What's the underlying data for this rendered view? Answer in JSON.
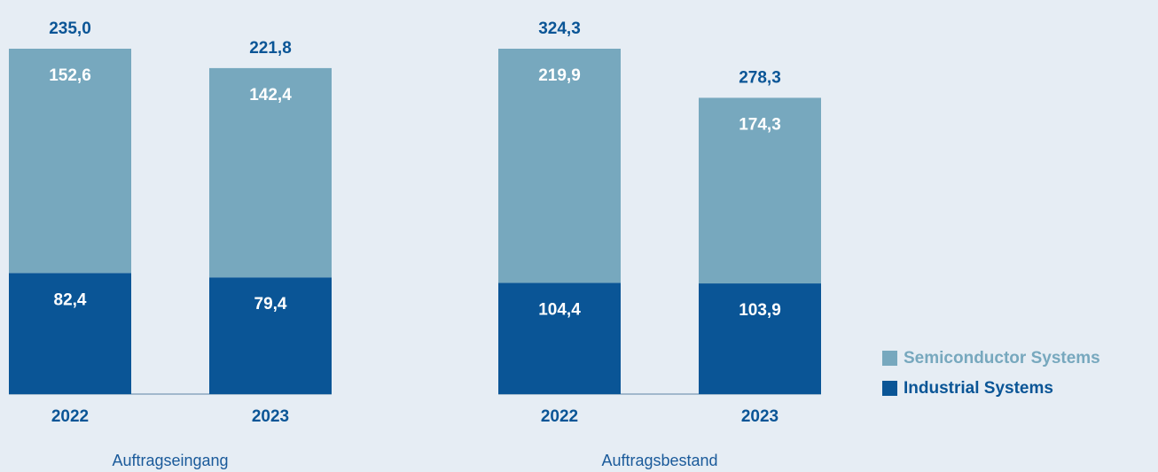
{
  "chart_data": [
    {
      "type": "bar",
      "stacked": true,
      "xlabel": "Auftragseingang",
      "categories": [
        "2022",
        "2023"
      ],
      "totals": [
        235.0,
        221.8
      ],
      "total_labels": [
        "235,0",
        "221,8"
      ],
      "series": [
        {
          "color": "#0a5596",
          "values": [
            82.4,
            79.4
          ],
          "value_labels": [
            "82,4",
            "79,4"
          ]
        },
        {
          "color": "#77a8be",
          "values": [
            152.6,
            142.4
          ],
          "value_labels": [
            "152,6",
            "142,4"
          ]
        }
      ]
    },
    {
      "type": "bar",
      "stacked": true,
      "xlabel": "Auftragsbestand",
      "categories": [
        "2022",
        "2023"
      ],
      "totals": [
        324.3,
        278.3
      ],
      "total_labels": [
        "324,3",
        "278,3"
      ],
      "legend": "right",
      "series": [
        {
          "name": "Industrial Systems",
          "color": "#0a5596",
          "values": [
            104.4,
            103.9
          ],
          "value_labels": [
            "104,4",
            "103,9"
          ]
        },
        {
          "name": "Semiconductor Systems",
          "color": "#77a8be",
          "values": [
            219.9,
            174.3
          ],
          "value_labels": [
            "219,9",
            "174,3"
          ]
        }
      ]
    }
  ]
}
